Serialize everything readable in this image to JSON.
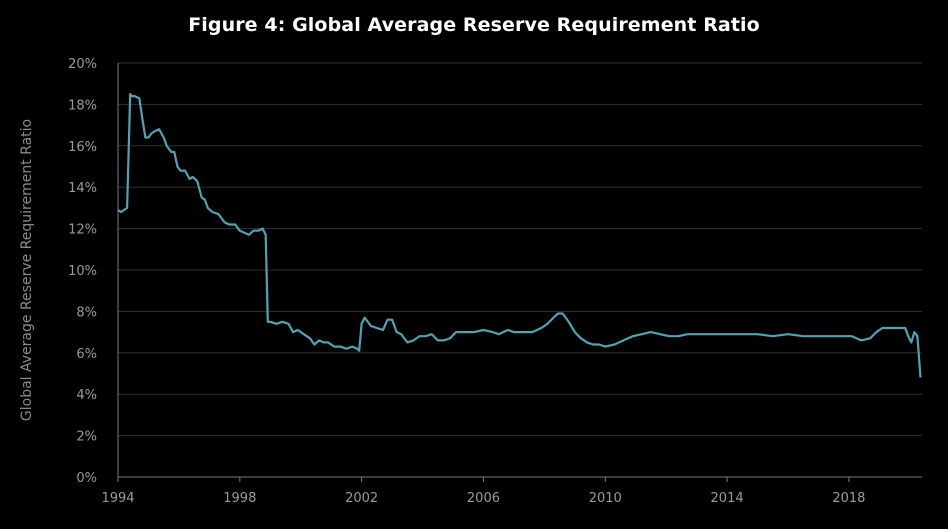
{
  "chart_data": {
    "type": "line",
    "title": "Figure 4: Global Average Reserve Requirement Ratio",
    "xlabel": "",
    "ylabel": "Global Average Reserve Requirement Ratio",
    "xlim": [
      1994,
      2020.4
    ],
    "ylim": [
      0,
      20
    ],
    "x_ticks": [
      "1994",
      "1998",
      "2002",
      "2006",
      "2010",
      "2014",
      "2018"
    ],
    "y_ticks": [
      "0%",
      "2%",
      "4%",
      "6%",
      "8%",
      "10%",
      "12%",
      "14%",
      "16%",
      "18%",
      "20%"
    ],
    "grid": true,
    "legend": "none",
    "colors": {
      "line": "#4fa3b3",
      "grid": "#333333",
      "axis": "#7a7a7a",
      "background": "#000000"
    },
    "series": [
      {
        "x": [
          1994.0,
          1994.1,
          1994.2,
          1994.3,
          1994.4,
          1994.45,
          1994.55,
          1994.7,
          1994.8,
          1994.9,
          1995.0,
          1995.1,
          1995.2,
          1995.35,
          1995.5,
          1995.6,
          1995.75,
          1995.85,
          1995.95,
          1996.05,
          1996.2,
          1996.35,
          1996.45,
          1996.6,
          1996.75,
          1996.85,
          1996.95,
          1997.1,
          1997.3,
          1997.5,
          1997.65,
          1997.85,
          1998.0,
          1998.15,
          1998.3,
          1998.45,
          1998.6,
          1998.75,
          1998.85,
          1998.92,
          1999.0,
          1999.2,
          1999.4,
          1999.6,
          1999.75,
          1999.9,
          2000.1,
          2000.3,
          2000.45,
          2000.6,
          2000.75,
          2000.9,
          2001.1,
          2001.3,
          2001.5,
          2001.7,
          2001.85,
          2001.92,
          2002.0,
          2002.1,
          2002.3,
          2002.5,
          2002.7,
          2002.85,
          2003.0,
          2003.15,
          2003.3,
          2003.5,
          2003.7,
          2003.9,
          2004.1,
          2004.3,
          2004.5,
          2004.7,
          2004.9,
          2005.1,
          2005.3,
          2005.5,
          2005.7,
          2006.0,
          2006.3,
          2006.5,
          2006.8,
          2007.0,
          2007.3,
          2007.6,
          2007.9,
          2008.1,
          2008.3,
          2008.45,
          2008.6,
          2008.8,
          2009.0,
          2009.2,
          2009.4,
          2009.6,
          2009.8,
          2010.0,
          2010.3,
          2010.6,
          2010.9,
          2011.2,
          2011.5,
          2011.8,
          2012.1,
          2012.4,
          2012.7,
          2013.0,
          2013.5,
          2014.0,
          2014.5,
          2015.0,
          2015.5,
          2016.0,
          2016.5,
          2017.0,
          2017.5,
          2017.8,
          2018.1,
          2018.4,
          2018.7,
          2018.9,
          2019.1,
          2019.4,
          2019.7,
          2019.85,
          2019.95,
          2020.05,
          2020.15,
          2020.25,
          2020.35
        ],
        "y": [
          12.9,
          12.8,
          12.9,
          13.0,
          18.5,
          18.4,
          18.4,
          18.3,
          17.3,
          16.4,
          16.4,
          16.6,
          16.7,
          16.8,
          16.4,
          16.0,
          15.7,
          15.7,
          15.0,
          14.8,
          14.8,
          14.4,
          14.5,
          14.3,
          13.5,
          13.4,
          13.0,
          12.8,
          12.7,
          12.3,
          12.2,
          12.2,
          11.9,
          11.8,
          11.7,
          11.9,
          11.9,
          12.0,
          11.7,
          7.5,
          7.5,
          7.4,
          7.5,
          7.4,
          7.0,
          7.1,
          6.9,
          6.7,
          6.4,
          6.6,
          6.5,
          6.5,
          6.3,
          6.3,
          6.2,
          6.3,
          6.2,
          6.1,
          7.4,
          7.7,
          7.3,
          7.2,
          7.1,
          7.6,
          7.6,
          7.0,
          6.9,
          6.5,
          6.6,
          6.8,
          6.8,
          6.9,
          6.6,
          6.6,
          6.7,
          7.0,
          7.0,
          7.0,
          7.0,
          7.1,
          7.0,
          6.9,
          7.1,
          7.0,
          7.0,
          7.0,
          7.2,
          7.4,
          7.7,
          7.9,
          7.9,
          7.5,
          7.0,
          6.7,
          6.5,
          6.4,
          6.4,
          6.3,
          6.4,
          6.6,
          6.8,
          6.9,
          7.0,
          6.9,
          6.8,
          6.8,
          6.9,
          6.9,
          6.9,
          6.9,
          6.9,
          6.9,
          6.8,
          6.9,
          6.8,
          6.8,
          6.8,
          6.8,
          6.8,
          6.6,
          6.7,
          7.0,
          7.2,
          7.2,
          7.2,
          7.2,
          6.8,
          6.5,
          7.0,
          6.8,
          4.8
        ]
      }
    ]
  }
}
